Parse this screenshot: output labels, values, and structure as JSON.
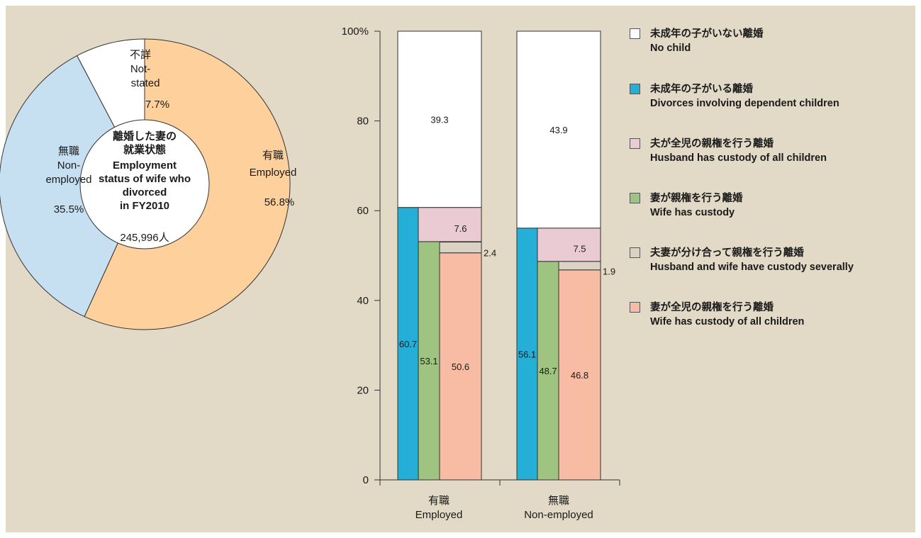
{
  "chart_data": [
    {
      "type": "pie",
      "variant": "donut",
      "center_text": [
        "離婚した妻の",
        "就業状態",
        "Employment",
        "status of wife who",
        "divorced",
        "in FY2010"
      ],
      "center_total": "245,996人",
      "slices": [
        {
          "name_ja": "有職",
          "name_en": "Employed",
          "value": 56.8,
          "label": "56.8%",
          "color": "#fdd09c"
        },
        {
          "name_ja": "無職",
          "name_en": "Non-employed",
          "value": 35.5,
          "label": "35.5%",
          "color": "#c6dff1"
        },
        {
          "name_ja": "不詳",
          "name_en": "Not-stated",
          "value": 7.7,
          "label": "7.7%",
          "color": "#ffffff"
        }
      ]
    },
    {
      "type": "bar",
      "variant": "stacked-grouped",
      "categories": [
        {
          "ja": "有職",
          "en": "Employed"
        },
        {
          "ja": "無職",
          "en": "Non-employed"
        }
      ],
      "ylim": [
        0,
        100
      ],
      "yticks": [
        {
          "value": 0,
          "label": "0"
        },
        {
          "value": 20,
          "label": "20"
        },
        {
          "value": 40,
          "label": "40"
        },
        {
          "value": 60,
          "label": "60"
        },
        {
          "value": 80,
          "label": "80"
        },
        {
          "value": 100,
          "label": "100%"
        }
      ],
      "series": [
        {
          "name_ja": "未成年の子がいない離婚",
          "name_en": "No child",
          "color": "#ffffff",
          "values": [
            39.3,
            43.9
          ]
        },
        {
          "name_ja": "未成年の子がいる離婚",
          "name_en": "Divorces involving dependent children",
          "color": "#25aed6",
          "values": [
            60.7,
            56.1
          ]
        },
        {
          "name_ja": "夫が全児の親権を行う離婚",
          "name_en": "Husband has custody of all children",
          "color": "#ebcbd3",
          "values": [
            7.6,
            7.5
          ]
        },
        {
          "name_ja": "妻が親権を行う離婚",
          "name_en": "Wife has custody",
          "color": "#9fc381",
          "values": [
            53.1,
            48.7
          ]
        },
        {
          "name_ja": "夫妻が分け合って親権を行う離婚",
          "name_en": "Husband and wife have custody severally",
          "color": "#dad2c2",
          "values": [
            2.4,
            1.9
          ]
        },
        {
          "name_ja": "妻が全児の親権を行う離婚",
          "name_en": "Wife has custody of all children",
          "color": "#f8bba3",
          "values": [
            50.6,
            46.8
          ]
        }
      ]
    }
  ]
}
